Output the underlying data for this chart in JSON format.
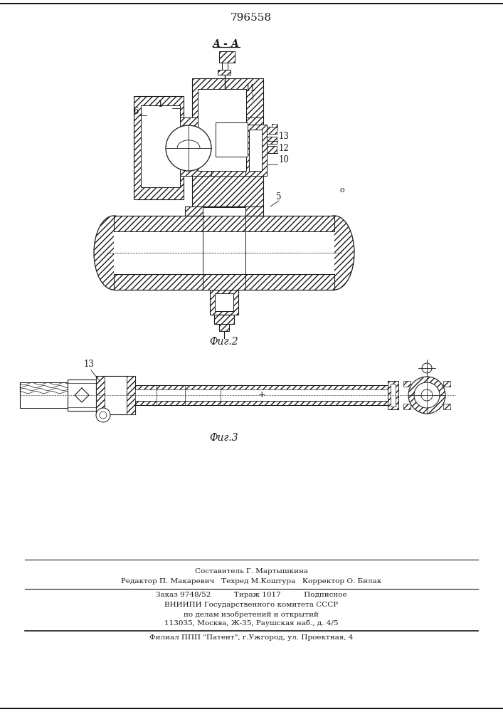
{
  "patent_number": "796558",
  "fig2_label": "Фиг.2",
  "fig3_label": "Фиг.3",
  "section_label": "А - А",
  "footer_lines": [
    "Составитель Г. Мартышкина",
    "Редактор П. Макаревич   Техред М.Коштура   Корректор О. Билак",
    "Заказ 9748/52          Тираж 1017          Подписное",
    "ВНИИПИ Государственного комитета СССР",
    "по делам изобретений и открытий",
    "113035, Москва, Ж-35, Раушская наб., д. 4/5",
    "Филиал ППП \"Патент\", г.Ужгород, ул. Проектная, 4"
  ],
  "bg_color": "#ffffff",
  "line_color": "#1a1a1a"
}
